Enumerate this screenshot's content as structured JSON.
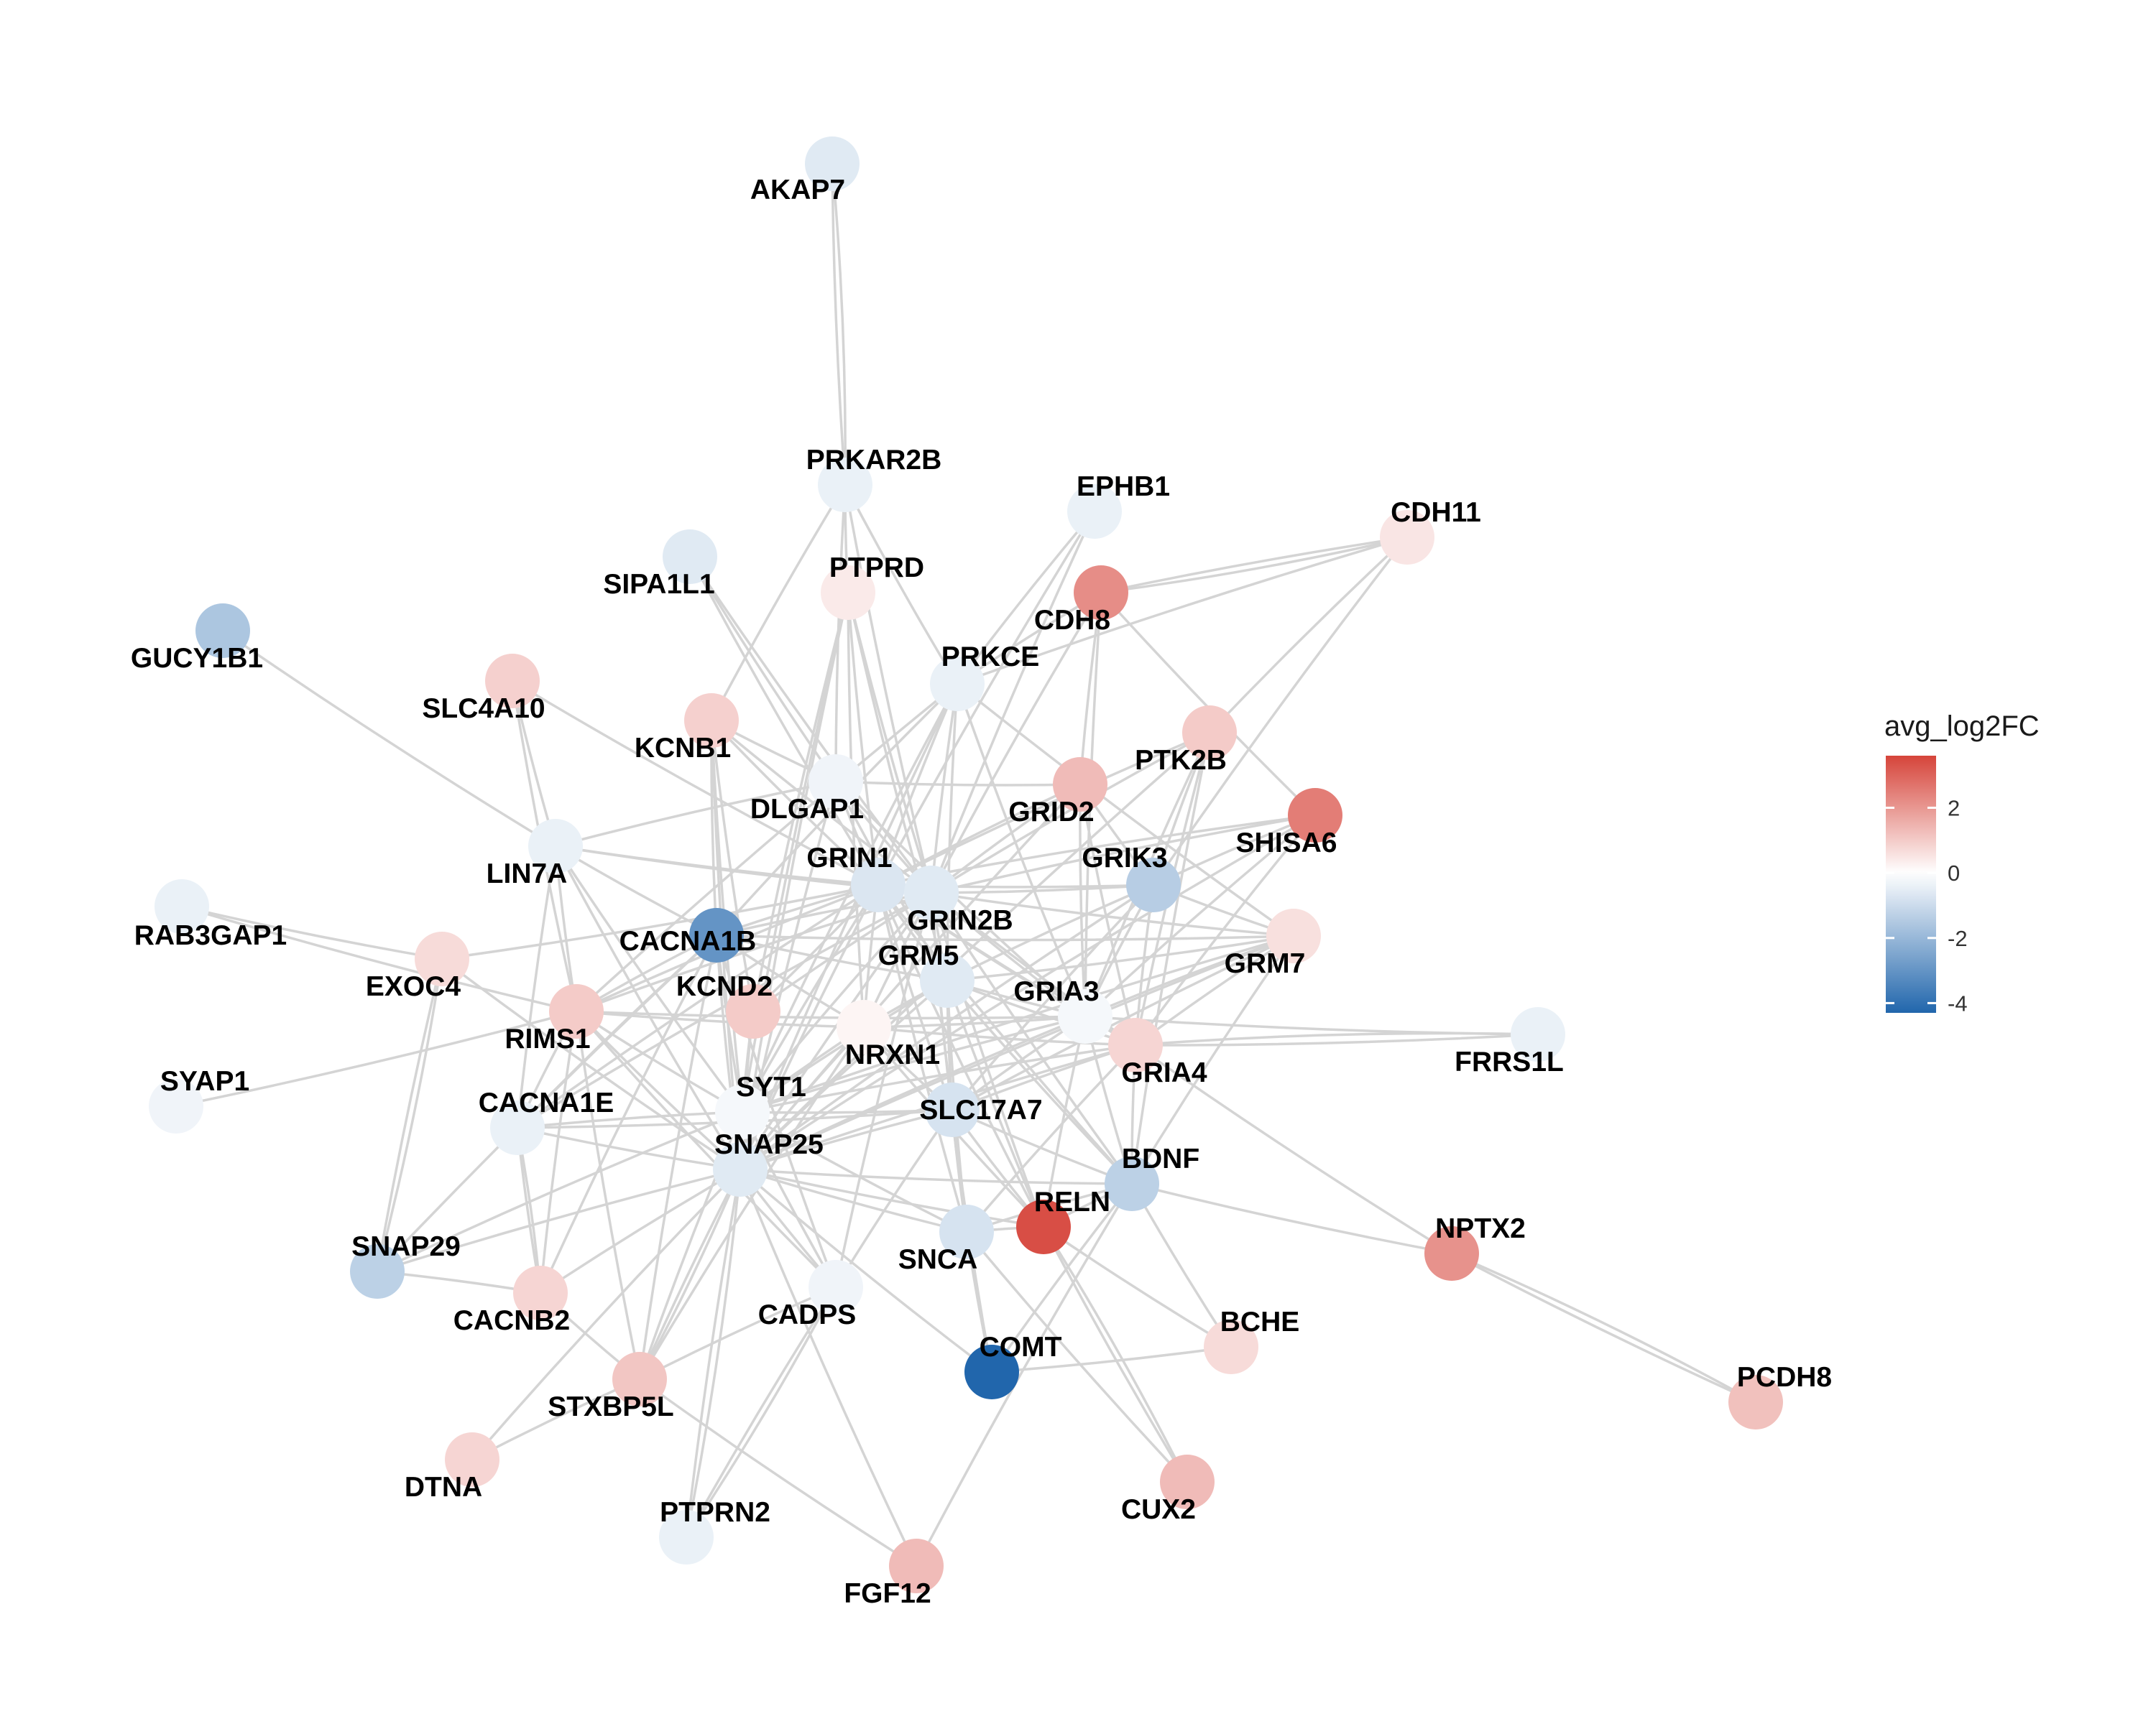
{
  "legend": {
    "title": "avg_log2FC",
    "ticks": [
      2,
      0,
      -2,
      -4
    ],
    "range": [
      -4.3,
      3.6
    ],
    "colors": {
      "low": "#2166AC",
      "mid": "#FFFFFF",
      "high": "#D6443A"
    }
  },
  "nodes": [
    {
      "id": "AKAP7",
      "value": -0.6
    },
    {
      "id": "PRKAR2B",
      "value": -0.4
    },
    {
      "id": "EPHB1",
      "value": -0.4
    },
    {
      "id": "CDH11",
      "value": 0.5
    },
    {
      "id": "SIPA1L1",
      "value": -0.6
    },
    {
      "id": "PTPRD",
      "value": 0.4
    },
    {
      "id": "CDH8",
      "value": 2.2
    },
    {
      "id": "GUCY1B1",
      "value": -1.6
    },
    {
      "id": "SLC4A10",
      "value": 0.9
    },
    {
      "id": "PRKCE",
      "value": -0.4
    },
    {
      "id": "KCNB1",
      "value": 0.9
    },
    {
      "id": "PTK2B",
      "value": 1.0
    },
    {
      "id": "DLGAP1",
      "value": -0.3
    },
    {
      "id": "GRID2",
      "value": 1.3
    },
    {
      "id": "SHISA6",
      "value": 2.5
    },
    {
      "id": "LIN7A",
      "value": -0.4
    },
    {
      "id": "GRIN1",
      "value": -0.7
    },
    {
      "id": "GRIN2B",
      "value": -0.6
    },
    {
      "id": "GRIK3",
      "value": -1.4
    },
    {
      "id": "RAB3GAP1",
      "value": -0.4
    },
    {
      "id": "CACNA1B",
      "value": -3.0
    },
    {
      "id": "EXOC4",
      "value": 0.7
    },
    {
      "id": "KCND2",
      "value": 1.0
    },
    {
      "id": "GRM5",
      "value": -0.6
    },
    {
      "id": "GRM7",
      "value": 0.6
    },
    {
      "id": "RIMS1",
      "value": 1.0
    },
    {
      "id": "NRXN1",
      "value": 0.2
    },
    {
      "id": "GRIA3",
      "value": -0.2
    },
    {
      "id": "GRIA4",
      "value": 0.8
    },
    {
      "id": "FRRS1L",
      "value": -0.4
    },
    {
      "id": "SYAP1",
      "value": -0.3
    },
    {
      "id": "SYT1",
      "value": -0.2
    },
    {
      "id": "CACNA1E",
      "value": -0.4
    },
    {
      "id": "SLC17A7",
      "value": -0.8
    },
    {
      "id": "SNAP25",
      "value": -0.6
    },
    {
      "id": "BDNF",
      "value": -1.3
    },
    {
      "id": "RELN",
      "value": 3.4
    },
    {
      "id": "SNCA",
      "value": -0.8
    },
    {
      "id": "NPTX2",
      "value": 2.1
    },
    {
      "id": "SNAP29",
      "value": -1.3
    },
    {
      "id": "CACNB2",
      "value": 0.8
    },
    {
      "id": "CADPS",
      "value": -0.3
    },
    {
      "id": "BCHE",
      "value": 0.7
    },
    {
      "id": "COMT",
      "value": -4.3
    },
    {
      "id": "PCDH8",
      "value": 1.2
    },
    {
      "id": "STXBP5L",
      "value": 1.1
    },
    {
      "id": "DTNA",
      "value": 0.8
    },
    {
      "id": "CUX2",
      "value": 1.3
    },
    {
      "id": "PTPRN2",
      "value": -0.4
    },
    {
      "id": "FGF12",
      "value": 1.3
    }
  ]
}
